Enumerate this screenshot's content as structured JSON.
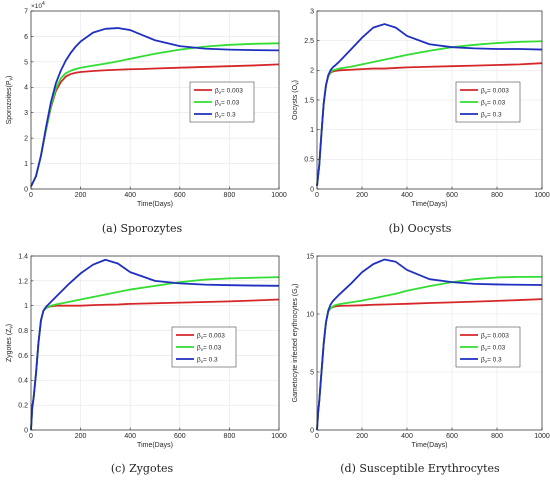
{
  "figure": {
    "captions": [
      "(a) Sporozytes",
      "(b) Oocysts",
      "(c) Zygotes",
      "(d) Susceptible Erythrocytes"
    ]
  },
  "colors": {
    "red": "#d62728",
    "green": "#33dd33",
    "blue": "#1f2fbf"
  },
  "chart_data": [
    {
      "type": "line",
      "xlabel": "Time(Days)",
      "ylabel": "Sporozoites(P",
      "ylabel_sub": "v",
      "ylabel_close": ")",
      "y_exponent": "×10",
      "y_exponent_power": "4",
      "xlim": [
        0,
        1000
      ],
      "ylim": [
        0,
        7
      ],
      "xticks": [
        0,
        200,
        400,
        600,
        800,
        1000
      ],
      "yticks": [
        0,
        1,
        2,
        3,
        4,
        5,
        6,
        7
      ],
      "legend_position": "middle-right",
      "legend_labels": [
        "= 0.003",
        "= 0.03",
        "= 0.3"
      ],
      "legend_symbol": "β",
      "legend_symbol_sub": "v",
      "x": [
        0,
        20,
        40,
        60,
        80,
        100,
        120,
        140,
        160,
        180,
        200,
        250,
        300,
        350,
        400,
        450,
        500,
        600,
        700,
        800,
        900,
        1000
      ],
      "series": [
        {
          "values": [
            0.1,
            0.5,
            1.3,
            2.3,
            3.2,
            3.85,
            4.2,
            4.42,
            4.52,
            4.57,
            4.6,
            4.64,
            4.67,
            4.69,
            4.71,
            4.72,
            4.74,
            4.77,
            4.8,
            4.83,
            4.86,
            4.9
          ]
        },
        {
          "values": [
            0.1,
            0.5,
            1.3,
            2.3,
            3.25,
            3.95,
            4.35,
            4.55,
            4.65,
            4.72,
            4.77,
            4.85,
            4.93,
            5.02,
            5.12,
            5.22,
            5.32,
            5.48,
            5.6,
            5.67,
            5.71,
            5.73
          ]
        },
        {
          "values": [
            0.1,
            0.5,
            1.3,
            2.4,
            3.4,
            4.15,
            4.65,
            5.05,
            5.35,
            5.6,
            5.8,
            6.15,
            6.3,
            6.33,
            6.25,
            6.05,
            5.85,
            5.62,
            5.52,
            5.48,
            5.46,
            5.45
          ]
        }
      ]
    },
    {
      "type": "line",
      "xlabel": "Time(Days)",
      "ylabel": "Oocysts (O",
      "ylabel_sub": "v",
      "ylabel_close": ")",
      "xlim": [
        0,
        1000
      ],
      "ylim": [
        0,
        3
      ],
      "xticks": [
        0,
        200,
        400,
        600,
        800,
        1000
      ],
      "yticks": [
        0,
        0.5,
        1,
        1.5,
        2,
        2.5,
        3
      ],
      "legend_position": "middle-right",
      "legend_labels": [
        "= 0.003",
        "= 0.03",
        "= 0.3"
      ],
      "legend_symbol": "β",
      "legend_symbol_sub": "v",
      "x": [
        0,
        10,
        20,
        30,
        40,
        50,
        60,
        70,
        80,
        100,
        150,
        200,
        250,
        300,
        350,
        400,
        500,
        600,
        700,
        800,
        900,
        1000
      ],
      "series": [
        {
          "values": [
            0.05,
            0.4,
            0.95,
            1.45,
            1.75,
            1.9,
            1.96,
            1.98,
            1.99,
            2.0,
            2.01,
            2.02,
            2.03,
            2.03,
            2.04,
            2.05,
            2.06,
            2.07,
            2.08,
            2.09,
            2.1,
            2.12
          ]
        },
        {
          "values": [
            0.05,
            0.4,
            0.95,
            1.45,
            1.75,
            1.9,
            1.97,
            2.0,
            2.01,
            2.03,
            2.06,
            2.1,
            2.14,
            2.18,
            2.22,
            2.26,
            2.33,
            2.39,
            2.43,
            2.46,
            2.48,
            2.49
          ]
        },
        {
          "values": [
            0.05,
            0.4,
            0.95,
            1.45,
            1.75,
            1.92,
            2.0,
            2.05,
            2.08,
            2.15,
            2.35,
            2.55,
            2.72,
            2.78,
            2.72,
            2.58,
            2.44,
            2.39,
            2.37,
            2.36,
            2.36,
            2.35
          ]
        }
      ]
    },
    {
      "type": "line",
      "xlabel": "Time(Days)",
      "ylabel": "Zygotes (Z",
      "ylabel_sub": "v",
      "ylabel_close": ")",
      "xlim": [
        0,
        1000
      ],
      "ylim": [
        0,
        1.4
      ],
      "xticks": [
        0,
        200,
        400,
        600,
        800,
        1000
      ],
      "yticks": [
        0,
        0.2,
        0.4,
        0.6,
        0.8,
        1,
        1.2,
        1.4
      ],
      "legend_position": "middle-right",
      "legend_labels": [
        "= 0.003",
        "= 0.03",
        "= 0.3"
      ],
      "legend_symbol": "β",
      "legend_symbol_sub": "v",
      "x": [
        0,
        5,
        10,
        20,
        30,
        40,
        50,
        60,
        70,
        80,
        100,
        150,
        200,
        250,
        300,
        350,
        400,
        500,
        600,
        700,
        800,
        900,
        1000
      ],
      "series": [
        {
          "values": [
            0.0,
            0.18,
            0.25,
            0.45,
            0.7,
            0.88,
            0.96,
            0.98,
            0.99,
            0.995,
            1.0,
            1.0,
            1.0,
            1.005,
            1.008,
            1.01,
            1.015,
            1.02,
            1.025,
            1.03,
            1.035,
            1.042,
            1.05
          ]
        },
        {
          "values": [
            0.0,
            0.18,
            0.25,
            0.45,
            0.7,
            0.88,
            0.96,
            0.98,
            0.99,
            1.0,
            1.01,
            1.03,
            1.05,
            1.07,
            1.09,
            1.11,
            1.13,
            1.16,
            1.19,
            1.21,
            1.22,
            1.225,
            1.23
          ]
        },
        {
          "values": [
            0.0,
            0.18,
            0.25,
            0.45,
            0.7,
            0.88,
            0.96,
            0.99,
            1.01,
            1.03,
            1.07,
            1.17,
            1.26,
            1.33,
            1.37,
            1.34,
            1.27,
            1.2,
            1.18,
            1.17,
            1.165,
            1.162,
            1.16
          ]
        }
      ]
    },
    {
      "type": "line",
      "xlabel": "Time(Days)",
      "ylabel": "Gametocyte infected erythrocytes (G",
      "ylabel_sub": "v",
      "ylabel_close": ")",
      "xlim": [
        0,
        1000
      ],
      "ylim": [
        0,
        15
      ],
      "xticks": [
        0,
        200,
        400,
        600,
        800,
        1000
      ],
      "yticks": [
        0,
        5,
        10,
        15
      ],
      "legend_position": "middle-right",
      "legend_labels": [
        "= 0.003",
        "= 0.03",
        "= 0.3"
      ],
      "legend_symbol": "β",
      "legend_symbol_sub": "v",
      "x": [
        0,
        5,
        10,
        20,
        30,
        40,
        50,
        60,
        70,
        80,
        100,
        150,
        200,
        250,
        300,
        350,
        400,
        500,
        600,
        700,
        800,
        900,
        1000
      ],
      "series": [
        {
          "values": [
            0.0,
            1.5,
            2.5,
            5.0,
            7.5,
            9.3,
            10.2,
            10.5,
            10.6,
            10.65,
            10.7,
            10.72,
            10.75,
            10.8,
            10.82,
            10.85,
            10.88,
            10.95,
            11.0,
            11.07,
            11.13,
            11.2,
            11.28
          ]
        },
        {
          "values": [
            0.0,
            1.5,
            2.5,
            5.0,
            7.5,
            9.3,
            10.2,
            10.5,
            10.65,
            10.75,
            10.85,
            11.0,
            11.15,
            11.35,
            11.55,
            11.75,
            12.0,
            12.4,
            12.75,
            13.0,
            13.15,
            13.2,
            13.2
          ]
        },
        {
          "values": [
            0.0,
            1.5,
            2.5,
            5.0,
            7.5,
            9.3,
            10.3,
            10.8,
            11.1,
            11.3,
            11.7,
            12.6,
            13.6,
            14.3,
            14.7,
            14.5,
            13.8,
            13.0,
            12.75,
            12.6,
            12.55,
            12.52,
            12.5
          ]
        }
      ]
    }
  ]
}
